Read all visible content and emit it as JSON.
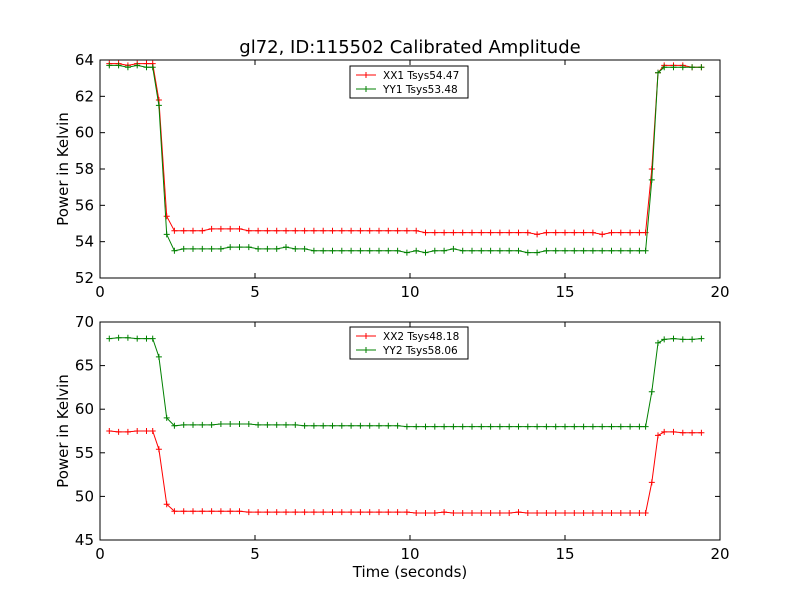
{
  "figure": {
    "title": "gl72, ID:115502 Calibrated Amplitude"
  },
  "chart_data": [
    {
      "type": "line",
      "title": "gl72, ID:115502 Calibrated Amplitude",
      "xlabel": "",
      "ylabel": "Power in Kelvin",
      "xlim": [
        0,
        20
      ],
      "ylim": [
        52,
        64
      ],
      "xticks": [
        0,
        5,
        10,
        15,
        20
      ],
      "yticks": [
        52,
        54,
        56,
        58,
        60,
        62,
        64
      ],
      "grid": false,
      "legend_position": "top-center",
      "x": [
        0.3,
        0.6,
        0.9,
        1.2,
        1.5,
        1.7,
        1.9,
        2.15,
        2.4,
        2.7,
        3.0,
        3.3,
        3.6,
        3.9,
        4.2,
        4.5,
        4.8,
        5.1,
        5.4,
        5.7,
        6.0,
        6.3,
        6.6,
        6.9,
        7.2,
        7.5,
        7.8,
        8.1,
        8.4,
        8.7,
        9.0,
        9.3,
        9.6,
        9.9,
        10.2,
        10.5,
        10.8,
        11.1,
        11.4,
        11.7,
        12.0,
        12.3,
        12.6,
        12.9,
        13.2,
        13.5,
        13.8,
        14.1,
        14.4,
        14.7,
        15.0,
        15.3,
        15.6,
        15.9,
        16.2,
        16.5,
        16.8,
        17.1,
        17.4,
        17.6,
        17.8,
        18.0,
        18.2,
        18.5,
        18.8,
        19.1,
        19.4
      ],
      "series": [
        {
          "name": "XX1 Tsys54.47",
          "color": "#ff0000",
          "values": [
            63.8,
            63.8,
            63.7,
            63.8,
            63.8,
            63.8,
            61.8,
            55.4,
            54.6,
            54.6,
            54.6,
            54.6,
            54.7,
            54.7,
            54.7,
            54.7,
            54.6,
            54.6,
            54.6,
            54.6,
            54.6,
            54.6,
            54.6,
            54.6,
            54.6,
            54.6,
            54.6,
            54.6,
            54.6,
            54.6,
            54.6,
            54.6,
            54.6,
            54.6,
            54.6,
            54.5,
            54.5,
            54.5,
            54.5,
            54.5,
            54.5,
            54.5,
            54.5,
            54.5,
            54.5,
            54.5,
            54.5,
            54.4,
            54.5,
            54.5,
            54.5,
            54.5,
            54.5,
            54.5,
            54.4,
            54.5,
            54.5,
            54.5,
            54.5,
            54.5,
            58.0,
            63.3,
            63.7,
            63.7,
            63.7,
            63.6,
            63.6
          ]
        },
        {
          "name": "YY1 Tsys53.48",
          "color": "#008000",
          "values": [
            63.7,
            63.7,
            63.6,
            63.7,
            63.6,
            63.6,
            61.5,
            54.4,
            53.5,
            53.6,
            53.6,
            53.6,
            53.6,
            53.6,
            53.7,
            53.7,
            53.7,
            53.6,
            53.6,
            53.6,
            53.7,
            53.6,
            53.6,
            53.5,
            53.5,
            53.5,
            53.5,
            53.5,
            53.5,
            53.5,
            53.5,
            53.5,
            53.5,
            53.4,
            53.5,
            53.4,
            53.5,
            53.5,
            53.6,
            53.5,
            53.5,
            53.5,
            53.5,
            53.5,
            53.5,
            53.5,
            53.4,
            53.4,
            53.5,
            53.5,
            53.5,
            53.5,
            53.5,
            53.5,
            53.5,
            53.5,
            53.5,
            53.5,
            53.5,
            53.5,
            57.4,
            63.3,
            63.6,
            63.6,
            63.6,
            63.6,
            63.6
          ]
        }
      ]
    },
    {
      "type": "line",
      "title": "",
      "xlabel": "Time (seconds)",
      "ylabel": "Power in Kelvin",
      "xlim": [
        0,
        20
      ],
      "ylim": [
        45,
        70
      ],
      "xticks": [
        0,
        5,
        10,
        15,
        20
      ],
      "yticks": [
        45,
        50,
        55,
        60,
        65,
        70
      ],
      "grid": false,
      "legend_position": "top-center",
      "x": [
        0.3,
        0.6,
        0.9,
        1.2,
        1.5,
        1.7,
        1.9,
        2.15,
        2.4,
        2.7,
        3.0,
        3.3,
        3.6,
        3.9,
        4.2,
        4.5,
        4.8,
        5.1,
        5.4,
        5.7,
        6.0,
        6.3,
        6.6,
        6.9,
        7.2,
        7.5,
        7.8,
        8.1,
        8.4,
        8.7,
        9.0,
        9.3,
        9.6,
        9.9,
        10.2,
        10.5,
        10.8,
        11.1,
        11.4,
        11.7,
        12.0,
        12.3,
        12.6,
        12.9,
        13.2,
        13.5,
        13.8,
        14.1,
        14.4,
        14.7,
        15.0,
        15.3,
        15.6,
        15.9,
        16.2,
        16.5,
        16.8,
        17.1,
        17.4,
        17.6,
        17.8,
        18.0,
        18.2,
        18.5,
        18.8,
        19.1,
        19.4
      ],
      "series": [
        {
          "name": "XX2 Tsys48.18",
          "color": "#ff0000",
          "values": [
            57.5,
            57.4,
            57.4,
            57.5,
            57.5,
            57.5,
            55.4,
            49.1,
            48.3,
            48.3,
            48.3,
            48.3,
            48.3,
            48.3,
            48.3,
            48.3,
            48.2,
            48.2,
            48.2,
            48.2,
            48.2,
            48.2,
            48.2,
            48.2,
            48.2,
            48.2,
            48.2,
            48.2,
            48.2,
            48.2,
            48.2,
            48.2,
            48.2,
            48.2,
            48.1,
            48.1,
            48.1,
            48.2,
            48.1,
            48.1,
            48.1,
            48.1,
            48.1,
            48.1,
            48.1,
            48.2,
            48.1,
            48.1,
            48.1,
            48.1,
            48.1,
            48.1,
            48.1,
            48.1,
            48.1,
            48.1,
            48.1,
            48.1,
            48.1,
            48.1,
            51.6,
            57.0,
            57.4,
            57.4,
            57.3,
            57.3,
            57.3
          ]
        },
        {
          "name": "YY2 Tsys58.06",
          "color": "#008000",
          "values": [
            68.1,
            68.2,
            68.2,
            68.1,
            68.1,
            68.1,
            66.0,
            59.0,
            58.1,
            58.2,
            58.2,
            58.2,
            58.2,
            58.3,
            58.3,
            58.3,
            58.3,
            58.2,
            58.2,
            58.2,
            58.2,
            58.2,
            58.1,
            58.1,
            58.1,
            58.1,
            58.1,
            58.1,
            58.1,
            58.1,
            58.1,
            58.1,
            58.1,
            58.0,
            58.0,
            58.0,
            58.0,
            58.0,
            58.0,
            58.0,
            58.0,
            58.0,
            58.0,
            58.0,
            58.0,
            58.0,
            58.0,
            58.0,
            58.0,
            58.0,
            58.0,
            58.0,
            58.0,
            58.0,
            58.0,
            58.0,
            58.0,
            58.0,
            58.0,
            58.0,
            62.0,
            67.6,
            68.0,
            68.1,
            68.0,
            68.0,
            68.1
          ]
        }
      ]
    }
  ]
}
